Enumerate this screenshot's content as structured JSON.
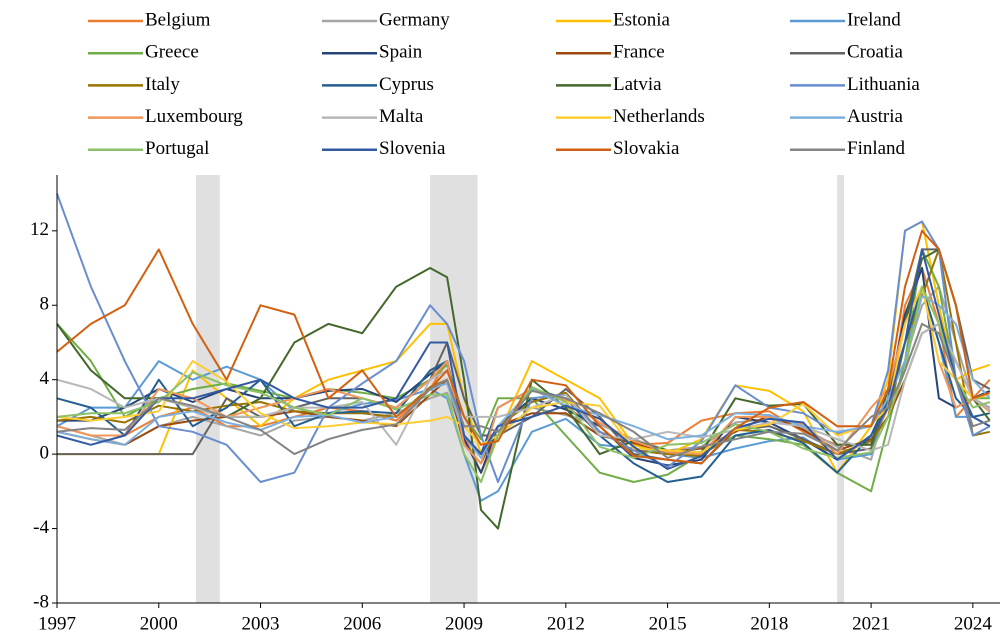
{
  "chart_data": {
    "type": "line",
    "x": [
      1997,
      1998,
      1999,
      2000,
      2001,
      2002,
      2003,
      2004,
      2005,
      2006,
      2007,
      2008,
      2008.5,
      2009,
      2009.5,
      2010,
      2011,
      2012,
      2013,
      2014,
      2015,
      2016,
      2017,
      2018,
      2019,
      2020,
      2021,
      2021.5,
      2022,
      2022.5,
      2023,
      2023.5,
      2024,
      2024.5
    ],
    "xlim": [
      1997,
      2024.8
    ],
    "xticks": [
      1997,
      2000,
      2003,
      2006,
      2009,
      2012,
      2015,
      2018,
      2021,
      2024
    ],
    "ylim": [
      -8,
      15
    ],
    "yticks": [
      -8,
      -4,
      0,
      4,
      8,
      12
    ],
    "shaded_periods": [
      [
        2001.1,
        2001.8
      ],
      [
        2008.0,
        2009.4
      ],
      [
        2020.0,
        2020.2
      ]
    ],
    "shade_color": "#e0e0e0",
    "series": [
      {
        "name": "Belgium",
        "color": "#ed7d31",
        "values": [
          1.5,
          1,
          1,
          2,
          2.5,
          1.5,
          1.5,
          2,
          2.5,
          2.3,
          1.8,
          3.5,
          5,
          1,
          -1,
          1,
          3.5,
          2.6,
          1.2,
          0.5,
          0.6,
          1.8,
          2.2,
          2.3,
          1.2,
          0.5,
          0.5,
          2.5,
          8,
          10,
          7,
          2,
          3,
          4
        ]
      },
      {
        "name": "Germany",
        "color": "#a5a5a5",
        "values": [
          1.5,
          1,
          0.5,
          1.5,
          2,
          1.5,
          1,
          1.8,
          2,
          1.8,
          2.2,
          3,
          3.3,
          1,
          0,
          1,
          2.5,
          2.1,
          1.6,
          0.8,
          0.2,
          0.4,
          1.7,
          1.9,
          1.4,
          0.4,
          -0.3,
          3,
          5,
          8,
          9,
          6,
          3,
          2.5
        ]
      },
      {
        "name": "Estonia",
        "color": "#ffc000",
        "values": [
          0,
          0,
          0,
          0,
          4.5,
          3,
          1.5,
          3,
          4,
          4.5,
          5,
          7,
          7,
          3,
          0,
          1,
          5,
          4,
          3,
          0.5,
          0,
          0.8,
          3.7,
          3.4,
          2.3,
          -1,
          1.5,
          4,
          12,
          12.5,
          8,
          4,
          4.5,
          4.8
        ]
      },
      {
        "name": "Ireland",
        "color": "#5b9bd5",
        "values": [
          1.5,
          2.5,
          2.5,
          5,
          4,
          4.7,
          4,
          2.3,
          2.2,
          2.7,
          2.9,
          3.5,
          3,
          0,
          -2.5,
          -2,
          1.2,
          1.9,
          0.5,
          0.3,
          0,
          -0.2,
          0.3,
          0.7,
          0.9,
          -0.3,
          0,
          3,
          5,
          9,
          6,
          2,
          2,
          1.5
        ]
      },
      {
        "name": "Greece",
        "color": "#70ad47",
        "values": [
          7,
          5,
          2,
          3,
          3.5,
          3.8,
          3.4,
          3,
          3.5,
          3.3,
          3,
          4,
          4.8,
          2,
          0.8,
          3,
          3,
          1,
          -1,
          -1.5,
          -1.1,
          0,
          1,
          0.8,
          0.5,
          -1,
          -2,
          1.5,
          5,
          11,
          9,
          4,
          3,
          3
        ]
      },
      {
        "name": "Spain",
        "color": "#264478",
        "values": [
          1.8,
          1.8,
          2.5,
          3.5,
          2.8,
          3.5,
          3,
          3,
          3.4,
          3.5,
          2.8,
          4.3,
          5,
          0.8,
          -1,
          1.5,
          3,
          2.4,
          1.5,
          -0.2,
          -0.6,
          -0.3,
          2,
          1.7,
          0.8,
          -0.3,
          1,
          3,
          7.5,
          10,
          3,
          2.5,
          3,
          3.4
        ]
      },
      {
        "name": "France",
        "color": "#9e480e",
        "values": [
          1.2,
          0.8,
          0.5,
          1.5,
          1.8,
          2,
          2,
          2.3,
          2,
          1.8,
          1.5,
          3.2,
          4,
          0.5,
          -0.5,
          1.5,
          2.2,
          2.2,
          1,
          0.6,
          0.1,
          0.3,
          1.2,
          2.1,
          1.3,
          0.2,
          0.8,
          2,
          4,
          6.5,
          7,
          5,
          3,
          2.3
        ]
      },
      {
        "name": "Croatia",
        "color": "#636363",
        "values": [
          0,
          0,
          0,
          0,
          0,
          3,
          2,
          2.5,
          3,
          3,
          2.5,
          4,
          6,
          3,
          1,
          1,
          2,
          3.5,
          2,
          0,
          -0.3,
          -0.5,
          1.3,
          1.5,
          0.8,
          0,
          0.3,
          3,
          7,
          11,
          11,
          8,
          4,
          3.5
        ]
      },
      {
        "name": "Italy",
        "color": "#997300",
        "values": [
          1.8,
          2,
          1.7,
          2.6,
          2.3,
          2.6,
          2.8,
          2.3,
          2.2,
          2.2,
          2,
          3.6,
          4,
          1,
          0,
          1.5,
          2.8,
          3.3,
          1.2,
          0.2,
          0,
          -0.1,
          1.3,
          1.2,
          0.7,
          0,
          0.7,
          2,
          6,
          8.5,
          11,
          6,
          1,
          1.2
        ]
      },
      {
        "name": "Cyprus",
        "color": "#255e91",
        "values": [
          3,
          2.5,
          1,
          4,
          1.5,
          2.5,
          4,
          1.5,
          2.2,
          2.3,
          2.2,
          4.5,
          5,
          1,
          0,
          2.5,
          3.5,
          3,
          1,
          -0.5,
          -1.5,
          -1.2,
          1,
          1.3,
          0.6,
          -1,
          1,
          3,
          6,
          9,
          6,
          3,
          2,
          2.2
        ]
      },
      {
        "name": "Latvia",
        "color": "#43682b",
        "values": [
          7,
          4.5,
          3,
          3,
          2.5,
          2,
          3,
          6,
          7,
          6.5,
          9,
          10,
          9.5,
          4,
          -3,
          -4,
          4,
          2.5,
          0,
          0.7,
          0.2,
          0.1,
          3,
          2.6,
          2.7,
          0.5,
          0.5,
          3.5,
          7,
          10.5,
          11,
          8,
          3,
          1.8
        ]
      },
      {
        "name": "Lithuania",
        "color": "#698ed0",
        "values": [
          14,
          9,
          5,
          1.5,
          1.2,
          0.5,
          -1.5,
          -1,
          2.5,
          3.8,
          5,
          8,
          7,
          5,
          1,
          -1.5,
          3,
          3.2,
          1.2,
          0.2,
          -0.7,
          0.7,
          3.7,
          2.5,
          2.2,
          1.1,
          1.5,
          4.5,
          12,
          12.5,
          11,
          4,
          1,
          1.5
        ]
      },
      {
        "name": "Luxembourg",
        "color": "#f1975a",
        "values": [
          1.5,
          1,
          1,
          3.5,
          3,
          2,
          2.5,
          3,
          3.5,
          3,
          2.5,
          4,
          5,
          0.5,
          -0.5,
          2.5,
          3.5,
          2.9,
          1.7,
          0.7,
          0.1,
          0,
          2,
          2,
          1.6,
          0,
          2.5,
          3.5,
          7,
          9,
          5,
          2.5,
          3,
          2.3
        ]
      },
      {
        "name": "Malta",
        "color": "#b7b7b7",
        "values": [
          4,
          3.5,
          2.5,
          3,
          2.5,
          2,
          2,
          2.5,
          2.5,
          2.8,
          0.5,
          4,
          4.5,
          2,
          2,
          2,
          2.5,
          3.2,
          1,
          0.8,
          1.2,
          0.9,
          1.3,
          1.7,
          1.5,
          0.8,
          0.2,
          0.5,
          4,
          6.5,
          7,
          5,
          3,
          2.4
        ]
      },
      {
        "name": "Netherlands",
        "color": "#ffcd33",
        "values": [
          2,
          1.8,
          2,
          2.3,
          5,
          3.9,
          2.2,
          1.4,
          1.5,
          1.7,
          1.6,
          1.8,
          2,
          1.5,
          0.5,
          1,
          2.5,
          2.8,
          2.6,
          0.3,
          0.2,
          0.1,
          1.3,
          1.6,
          2.7,
          1,
          1.6,
          2.5,
          7,
          9,
          5,
          4,
          3,
          3.2
        ]
      },
      {
        "name": "Austria",
        "color": "#7cafdd",
        "values": [
          1.2,
          0.8,
          0.5,
          2,
          2.3,
          1.7,
          1.3,
          2,
          2.1,
          1.7,
          2,
          3.5,
          3.8,
          1,
          -0.2,
          1.5,
          3.5,
          2.6,
          2.1,
          1.5,
          0.8,
          1,
          2.2,
          2.1,
          1.5,
          1.2,
          1.5,
          3,
          5,
          8.5,
          8,
          7,
          4,
          3
        ]
      },
      {
        "name": "Portugal",
        "color": "#8cc168",
        "values": [
          2,
          2.2,
          2.2,
          2.8,
          4.4,
          3.7,
          3.3,
          2.5,
          2.1,
          3,
          2.4,
          3.2,
          3.2,
          0,
          -1.5,
          1,
          3.6,
          2.8,
          0.4,
          -0.2,
          0.5,
          0.6,
          1.6,
          1.2,
          0.3,
          -0.2,
          0.1,
          2,
          4.5,
          9,
          7,
          4,
          2.5,
          2.8
        ]
      },
      {
        "name": "Slovenia",
        "color": "#335aa1",
        "values": [
          1,
          0.5,
          1,
          3,
          3,
          3.5,
          4,
          3,
          2.5,
          2.5,
          3,
          6,
          6,
          1,
          0,
          1.5,
          2,
          2.6,
          1.9,
          0.4,
          -0.8,
          -0.1,
          1.4,
          1.9,
          1.7,
          -0.3,
          1,
          2.5,
          6,
          11,
          7.5,
          4,
          2,
          1.5
        ]
      },
      {
        "name": "Slovakia",
        "color": "#d26012",
        "values": [
          5.5,
          7,
          8,
          11,
          7,
          4,
          8,
          7.5,
          3,
          4.5,
          2,
          3.5,
          4.5,
          2,
          0.5,
          0.7,
          4,
          3.7,
          1.5,
          -0.1,
          -0.3,
          -0.5,
          1.4,
          2.5,
          2.8,
          1.5,
          1.5,
          3.5,
          9,
          12,
          11,
          8,
          3,
          3.3
        ]
      },
      {
        "name": "Finland",
        "color": "#848484",
        "values": [
          1.2,
          1.4,
          1.3,
          3,
          2.6,
          2,
          1.3,
          0,
          0.8,
          1.3,
          1.6,
          3.5,
          4,
          1.5,
          1.5,
          1.2,
          3.4,
          3,
          2.2,
          1.2,
          -0.2,
          0.4,
          0.8,
          1.2,
          1.1,
          0.2,
          2,
          2.5,
          4.5,
          7,
          6.5,
          4,
          1.5,
          1.8
        ]
      }
    ]
  }
}
